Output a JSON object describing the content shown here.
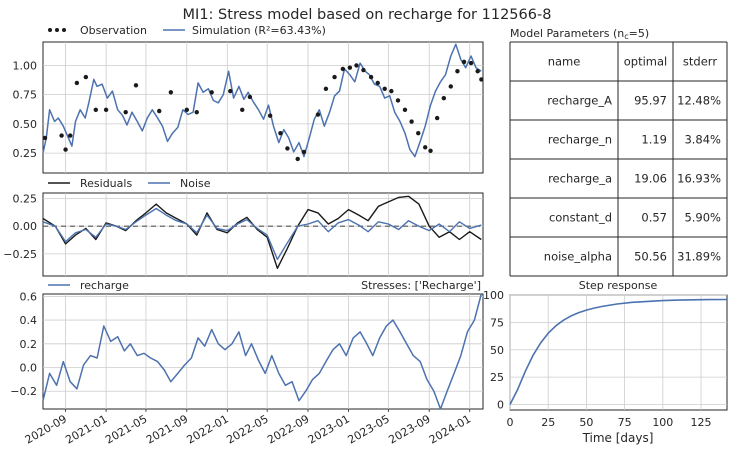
{
  "title": "MI1: Stress model based on recharge for 112566-8",
  "colors": {
    "simulation": "#4c72b0",
    "observation": "#1a1a1a",
    "residuals": "#1a1a1a",
    "noise": "#4c72b0",
    "recharge": "#4c72b0",
    "step": "#4c72b0",
    "grid": "#cccccc",
    "frame": "#262626"
  },
  "panels": {
    "main": {
      "legend": {
        "observation": "Observation",
        "simulation": "Simulation (R²=63.43%)"
      },
      "yticks": [
        "0.25",
        "0.50",
        "0.75",
        "1.00"
      ]
    },
    "residuals": {
      "legend": {
        "residuals": "Residuals",
        "noise": "Noise"
      },
      "yticks": [
        "0.25",
        "0.00",
        "−0.25"
      ]
    },
    "recharge": {
      "legend": {
        "recharge": "recharge"
      },
      "stresses_label": "Stresses: ['Recharge']",
      "yticks": [
        "0.6",
        "0.4",
        "0.2",
        "0.0",
        "−0.2"
      ],
      "xticks": [
        "2020-09",
        "2021-01",
        "2021-05",
        "2021-09",
        "2022-01",
        "2022-05",
        "2022-09",
        "2023-01",
        "2023-05",
        "2023-09",
        "2024-01"
      ]
    },
    "params": {
      "title": "Model Parameters (n",
      "title_sub": "c",
      "title_end": "=5)",
      "headers": [
        "name",
        "optimal",
        "stderr"
      ],
      "rows": [
        [
          "recharge_A",
          "95.97",
          "12.48%"
        ],
        [
          "recharge_n",
          "1.19",
          "3.84%"
        ],
        [
          "recharge_a",
          "19.06",
          "16.93%"
        ],
        [
          "constant_d",
          "0.57",
          "5.90%"
        ],
        [
          "noise_alpha",
          "50.56",
          "31.89%"
        ]
      ]
    },
    "step": {
      "title": "Step response",
      "xlabel": "Time [days]",
      "xticks": [
        "0",
        "25",
        "50",
        "75",
        "100",
        "125"
      ],
      "yticks": [
        "100",
        "75",
        "50",
        "25",
        "0"
      ]
    }
  },
  "chart_data": [
    {
      "type": "line",
      "panel": "main",
      "title": "MI1: Stress model based on recharge for 112566-8",
      "ylim": [
        0.08,
        1.2
      ],
      "xlim": [
        "2020-06-25",
        "2024-02-10"
      ],
      "series": [
        {
          "name": "Simulation (R²=63.43%)",
          "x": [
            "2020-06-25",
            "2020-07-05",
            "2020-07-15",
            "2020-07-30",
            "2020-08-10",
            "2020-08-25",
            "2020-09-05",
            "2020-09-20",
            "2020-10-01",
            "2020-10-15",
            "2020-10-30",
            "2020-11-10",
            "2020-11-25",
            "2020-12-05",
            "2020-12-20",
            "2021-01-05",
            "2021-01-20",
            "2021-02-05",
            "2021-02-20",
            "2021-03-05",
            "2021-03-20",
            "2021-04-05",
            "2021-04-20",
            "2021-05-05",
            "2021-05-20",
            "2021-06-05",
            "2021-06-20",
            "2021-07-05",
            "2021-07-20",
            "2021-08-05",
            "2021-08-20",
            "2021-09-05",
            "2021-09-20",
            "2021-10-05",
            "2021-10-20",
            "2021-11-05",
            "2021-11-20",
            "2021-12-05",
            "2021-12-20",
            "2022-01-05",
            "2022-01-20",
            "2022-02-05",
            "2022-02-20",
            "2022-03-05",
            "2022-03-20",
            "2022-04-05",
            "2022-04-20",
            "2022-05-05",
            "2022-05-20",
            "2022-06-05",
            "2022-06-20",
            "2022-07-05",
            "2022-07-20",
            "2022-08-05",
            "2022-08-20",
            "2022-09-05",
            "2022-09-20",
            "2022-10-05",
            "2022-10-20",
            "2022-11-05",
            "2022-11-20",
            "2022-12-05",
            "2022-12-20",
            "2023-01-05",
            "2023-01-20",
            "2023-02-05",
            "2023-02-20",
            "2023-03-05",
            "2023-03-20",
            "2023-04-05",
            "2023-04-20",
            "2023-05-05",
            "2023-05-20",
            "2023-06-05",
            "2023-06-20",
            "2023-07-05",
            "2023-07-20",
            "2023-08-05",
            "2023-08-20",
            "2023-09-05",
            "2023-09-20",
            "2023-10-05",
            "2023-10-20",
            "2023-11-05",
            "2023-11-20",
            "2023-12-05",
            "2023-12-20",
            "2024-01-05",
            "2024-01-20",
            "2024-02-05"
          ],
          "y": [
            0.25,
            0.38,
            0.62,
            0.52,
            0.55,
            0.48,
            0.41,
            0.31,
            0.52,
            0.62,
            0.55,
            0.68,
            0.88,
            0.82,
            0.84,
            0.72,
            0.78,
            0.62,
            0.57,
            0.49,
            0.6,
            0.52,
            0.44,
            0.55,
            0.62,
            0.55,
            0.48,
            0.35,
            0.42,
            0.47,
            0.62,
            0.58,
            0.6,
            0.85,
            0.77,
            0.8,
            0.7,
            0.68,
            0.75,
            0.95,
            0.72,
            0.82,
            0.71,
            0.77,
            0.69,
            0.62,
            0.54,
            0.66,
            0.48,
            0.34,
            0.45,
            0.38,
            0.26,
            0.34,
            0.22,
            0.38,
            0.54,
            0.62,
            0.48,
            0.6,
            0.74,
            0.78,
            0.97,
            0.92,
            0.86,
            1.02,
            0.95,
            0.92,
            0.84,
            0.82,
            0.72,
            0.74,
            0.6,
            0.52,
            0.42,
            0.28,
            0.22,
            0.35,
            0.48,
            0.66,
            0.78,
            0.86,
            0.92,
            1.08,
            1.18,
            1.05,
            0.98,
            1.08,
            0.98,
            0.95
          ]
        },
        {
          "name": "Observation",
          "x": [
            "2020-07-01",
            "2020-08-20",
            "2020-09-01",
            "2020-09-15",
            "2020-10-05",
            "2020-11-01",
            "2020-12-01",
            "2021-01-01",
            "2021-03-01",
            "2021-04-01",
            "2021-06-10",
            "2021-07-15",
            "2021-09-01",
            "2021-10-01",
            "2021-11-15",
            "2022-01-10",
            "2022-02-15",
            "2022-03-10",
            "2022-05-10",
            "2022-06-10",
            "2022-07-01",
            "2022-08-01",
            "2022-08-20",
            "2022-10-01",
            "2022-10-25",
            "2022-11-20",
            "2022-12-15",
            "2023-01-05",
            "2023-01-25",
            "2023-02-15",
            "2023-03-10",
            "2023-03-30",
            "2023-04-20",
            "2023-05-10",
            "2023-05-30",
            "2023-06-20",
            "2023-07-10",
            "2023-07-30",
            "2023-08-20",
            "2023-09-05",
            "2023-09-25",
            "2023-10-15",
            "2023-11-05",
            "2023-11-25",
            "2023-12-15",
            "2024-01-05",
            "2024-01-25",
            "2024-02-05"
          ],
          "y": [
            0.38,
            0.4,
            0.28,
            0.4,
            0.85,
            0.9,
            0.62,
            0.62,
            0.6,
            0.83,
            0.61,
            0.77,
            0.62,
            0.6,
            0.77,
            0.78,
            0.62,
            0.73,
            0.57,
            0.42,
            0.29,
            0.2,
            0.26,
            0.58,
            0.8,
            0.9,
            0.97,
            0.98,
            1.0,
            0.96,
            0.9,
            0.85,
            0.8,
            0.78,
            0.7,
            0.62,
            0.52,
            0.42,
            0.3,
            0.27,
            0.55,
            0.72,
            0.82,
            0.95,
            1.03,
            1.02,
            0.95,
            0.88
          ]
        }
      ]
    },
    {
      "type": "line",
      "panel": "residuals",
      "ylim": [
        -0.45,
        0.3
      ],
      "xlim": [
        "2020-06-25",
        "2024-02-10"
      ],
      "series": [
        {
          "name": "Residuals",
          "x": [
            "2020-06-25",
            "2020-08-01",
            "2020-09-01",
            "2020-10-01",
            "2020-11-01",
            "2020-12-01",
            "2021-01-01",
            "2021-02-01",
            "2021-03-01",
            "2021-04-01",
            "2021-05-01",
            "2021-06-01",
            "2021-07-01",
            "2021-08-01",
            "2021-09-01",
            "2021-10-01",
            "2021-11-01",
            "2021-12-01",
            "2022-01-01",
            "2022-02-01",
            "2022-03-01",
            "2022-04-01",
            "2022-05-01",
            "2022-06-01",
            "2022-07-01",
            "2022-08-01",
            "2022-09-01",
            "2022-10-01",
            "2022-11-01",
            "2022-12-01",
            "2023-01-01",
            "2023-02-01",
            "2023-03-01",
            "2023-04-01",
            "2023-05-01",
            "2023-06-01",
            "2023-07-01",
            "2023-08-01",
            "2023-09-01",
            "2023-10-01",
            "2023-11-01",
            "2023-12-01",
            "2024-01-01",
            "2024-02-05"
          ],
          "y": [
            0.07,
            0.0,
            -0.16,
            -0.08,
            -0.02,
            -0.12,
            0.03,
            0.0,
            -0.04,
            0.05,
            0.12,
            0.2,
            0.12,
            0.07,
            0.02,
            -0.08,
            0.12,
            -0.03,
            -0.06,
            0.03,
            0.08,
            -0.03,
            -0.1,
            -0.38,
            -0.2,
            0.0,
            0.15,
            0.12,
            0.02,
            0.07,
            0.15,
            0.1,
            0.05,
            0.18,
            0.22,
            0.26,
            0.27,
            0.2,
            0.0,
            -0.1,
            -0.05,
            -0.12,
            -0.05,
            -0.12
          ]
        },
        {
          "name": "Noise",
          "x": [
            "2020-06-25",
            "2020-08-01",
            "2020-09-01",
            "2020-10-01",
            "2020-11-01",
            "2020-12-01",
            "2021-01-01",
            "2021-02-01",
            "2021-03-01",
            "2021-04-01",
            "2021-05-01",
            "2021-06-01",
            "2021-07-01",
            "2021-08-01",
            "2021-09-01",
            "2021-10-01",
            "2021-11-01",
            "2021-12-01",
            "2022-01-01",
            "2022-02-01",
            "2022-03-01",
            "2022-04-01",
            "2022-05-01",
            "2022-06-01",
            "2022-07-01",
            "2022-08-01",
            "2022-09-01",
            "2022-10-01",
            "2022-11-01",
            "2022-12-01",
            "2023-01-01",
            "2023-02-01",
            "2023-03-01",
            "2023-04-01",
            "2023-05-01",
            "2023-06-01",
            "2023-07-01",
            "2023-08-01",
            "2023-09-01",
            "2023-10-01",
            "2023-11-01",
            "2023-12-01",
            "2024-01-01",
            "2024-02-05"
          ],
          "y": [
            0.04,
            0.0,
            -0.14,
            -0.06,
            -0.03,
            -0.1,
            0.02,
            0.0,
            -0.03,
            0.04,
            0.1,
            0.16,
            0.1,
            0.05,
            0.02,
            -0.06,
            0.1,
            -0.02,
            -0.04,
            0.02,
            0.06,
            -0.02,
            -0.08,
            -0.3,
            -0.15,
            0.0,
            0.02,
            0.05,
            -0.05,
            0.03,
            0.06,
            0.01,
            -0.05,
            0.04,
            0.02,
            -0.03,
            0.05,
            0.0,
            -0.04,
            0.02,
            -0.05,
            0.04,
            -0.02,
            0.01
          ]
        }
      ]
    },
    {
      "type": "line",
      "panel": "recharge",
      "ylim": [
        -0.35,
        0.62
      ],
      "xlim": [
        "2020-06-25",
        "2024-02-10"
      ],
      "series": [
        {
          "name": "recharge",
          "x": [
            "2020-06-25",
            "2020-07-15",
            "2020-08-05",
            "2020-08-25",
            "2020-09-15",
            "2020-10-05",
            "2020-10-25",
            "2020-11-15",
            "2020-12-05",
            "2020-12-25",
            "2021-01-15",
            "2021-02-05",
            "2021-02-25",
            "2021-03-15",
            "2021-04-05",
            "2021-04-25",
            "2021-05-15",
            "2021-06-05",
            "2021-06-25",
            "2021-07-15",
            "2021-08-05",
            "2021-08-25",
            "2021-09-15",
            "2021-10-05",
            "2021-10-25",
            "2021-11-15",
            "2021-12-05",
            "2021-12-25",
            "2022-01-15",
            "2022-02-05",
            "2022-02-25",
            "2022-03-15",
            "2022-04-05",
            "2022-04-25",
            "2022-05-15",
            "2022-06-05",
            "2022-06-25",
            "2022-07-15",
            "2022-08-05",
            "2022-08-25",
            "2022-09-15",
            "2022-10-05",
            "2022-10-25",
            "2022-11-15",
            "2022-12-05",
            "2022-12-25",
            "2023-01-15",
            "2023-02-05",
            "2023-02-25",
            "2023-03-15",
            "2023-04-05",
            "2023-04-25",
            "2023-05-15",
            "2023-06-05",
            "2023-06-25",
            "2023-07-15",
            "2023-08-05",
            "2023-08-25",
            "2023-09-15",
            "2023-10-05",
            "2023-10-25",
            "2023-11-15",
            "2023-12-05",
            "2023-12-25",
            "2024-01-15",
            "2024-02-05"
          ],
          "y": [
            -0.28,
            -0.05,
            -0.15,
            0.05,
            -0.12,
            -0.18,
            0.02,
            0.1,
            0.08,
            0.35,
            0.22,
            0.26,
            0.14,
            0.2,
            0.1,
            0.12,
            0.08,
            0.05,
            -0.02,
            -0.12,
            -0.05,
            0.02,
            0.08,
            0.25,
            0.18,
            0.32,
            0.2,
            0.15,
            0.2,
            0.3,
            0.1,
            0.2,
            0.06,
            -0.05,
            0.1,
            -0.05,
            -0.15,
            -0.12,
            -0.28,
            -0.2,
            -0.1,
            -0.05,
            0.05,
            0.15,
            0.2,
            0.1,
            0.25,
            0.3,
            0.2,
            0.1,
            0.25,
            0.35,
            0.4,
            0.3,
            0.2,
            0.1,
            0.05,
            -0.1,
            -0.2,
            -0.35,
            -0.2,
            -0.05,
            0.1,
            0.3,
            0.4,
            0.62
          ]
        }
      ]
    },
    {
      "type": "line",
      "panel": "step",
      "title": "Step response",
      "xlabel": "Time [days]",
      "xlim": [
        0,
        142
      ],
      "ylim": [
        -5,
        100
      ],
      "series": [
        {
          "name": "",
          "x": [
            0,
            5,
            10,
            15,
            20,
            25,
            30,
            35,
            40,
            45,
            50,
            55,
            60,
            70,
            80,
            90,
            100,
            110,
            120,
            130,
            142
          ],
          "y": [
            0,
            13.6,
            30.3,
            44.7,
            56.2,
            65.1,
            71.8,
            77.0,
            80.9,
            83.9,
            86.2,
            88.0,
            89.5,
            91.8,
            93.3,
            94.2,
            94.9,
            95.3,
            95.6,
            95.8,
            95.9
          ]
        }
      ]
    }
  ]
}
